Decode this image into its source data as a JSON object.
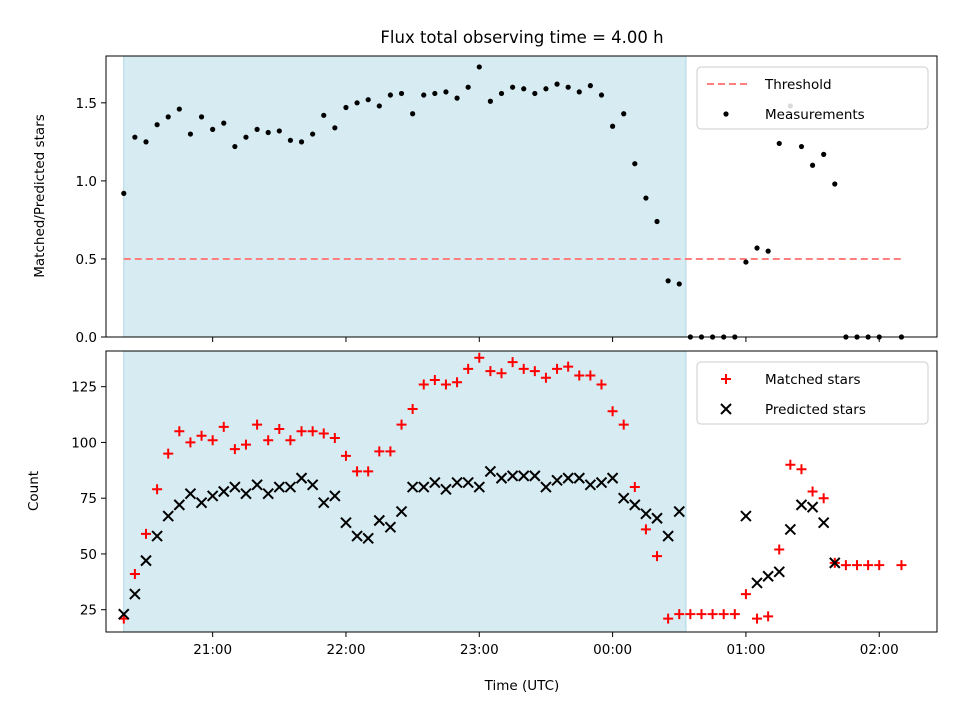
{
  "chart_data": [
    {
      "type": "scatter",
      "title": "Flux total observing time = 4.00 h",
      "xlabel": "",
      "ylabel": "Matched/Predicted stars",
      "ylim": [
        0,
        1.8
      ],
      "yticks": [
        "0.0",
        "0.5",
        "1.0",
        "1.5"
      ],
      "xlim": [
        "20:12",
        "02:26"
      ],
      "x_tick_labels": false,
      "observing_window": [
        "20:20",
        "00:33"
      ],
      "threshold": {
        "name": "Threshold",
        "value": 0.5,
        "x_range": [
          "20:20",
          "02:10"
        ],
        "color": "#ff7f7f"
      },
      "legend": {
        "position": "upper right",
        "entries": [
          "Threshold",
          "Measurements"
        ]
      },
      "series": [
        {
          "name": "Measurements",
          "color": "#000000",
          "points": [
            [
              "20:20",
              0.92
            ],
            [
              "20:25",
              1.28
            ],
            [
              "20:30",
              1.25
            ],
            [
              "20:35",
              1.36
            ],
            [
              "20:40",
              1.41
            ],
            [
              "20:45",
              1.46
            ],
            [
              "20:50",
              1.3
            ],
            [
              "20:55",
              1.41
            ],
            [
              "21:00",
              1.33
            ],
            [
              "21:05",
              1.37
            ],
            [
              "21:10",
              1.22
            ],
            [
              "21:15",
              1.28
            ],
            [
              "21:20",
              1.33
            ],
            [
              "21:25",
              1.31
            ],
            [
              "21:30",
              1.32
            ],
            [
              "21:35",
              1.26
            ],
            [
              "21:40",
              1.25
            ],
            [
              "21:45",
              1.3
            ],
            [
              "21:50",
              1.42
            ],
            [
              "21:55",
              1.34
            ],
            [
              "22:00",
              1.47
            ],
            [
              "22:05",
              1.5
            ],
            [
              "22:10",
              1.52
            ],
            [
              "22:15",
              1.48
            ],
            [
              "22:20",
              1.55
            ],
            [
              "22:25",
              1.56
            ],
            [
              "22:30",
              1.43
            ],
            [
              "22:35",
              1.55
            ],
            [
              "22:40",
              1.56
            ],
            [
              "22:45",
              1.57
            ],
            [
              "22:50",
              1.53
            ],
            [
              "22:55",
              1.6
            ],
            [
              "23:00",
              1.73
            ],
            [
              "23:05",
              1.51
            ],
            [
              "23:10",
              1.56
            ],
            [
              "23:15",
              1.6
            ],
            [
              "23:20",
              1.59
            ],
            [
              "23:25",
              1.56
            ],
            [
              "23:30",
              1.59
            ],
            [
              "23:35",
              1.62
            ],
            [
              "23:40",
              1.6
            ],
            [
              "23:45",
              1.57
            ],
            [
              "23:50",
              1.61
            ],
            [
              "23:55",
              1.55
            ],
            [
              "00:00",
              1.35
            ],
            [
              "00:05",
              1.43
            ],
            [
              "00:10",
              1.11
            ],
            [
              "00:15",
              0.89
            ],
            [
              "00:20",
              0.74
            ],
            [
              "00:25",
              0.36
            ],
            [
              "00:30",
              0.34
            ],
            [
              "00:35",
              0.0
            ],
            [
              "00:40",
              0.0
            ],
            [
              "00:45",
              0.0
            ],
            [
              "00:50",
              0.0
            ],
            [
              "00:55",
              0.0
            ],
            [
              "01:00",
              0.48
            ],
            [
              "01:05",
              0.57
            ],
            [
              "01:10",
              0.55
            ],
            [
              "01:15",
              1.24
            ],
            [
              "01:20",
              1.48
            ],
            [
              "01:25",
              1.22
            ],
            [
              "01:30",
              1.1
            ],
            [
              "01:35",
              1.17
            ],
            [
              "01:40",
              0.98
            ],
            [
              "01:45",
              0.0
            ],
            [
              "01:50",
              0.0
            ],
            [
              "01:55",
              0.0
            ],
            [
              "02:00",
              0.0
            ],
            [
              "02:10",
              0.0
            ]
          ]
        }
      ]
    },
    {
      "type": "scatter",
      "title": "",
      "xlabel": "Time (UTC)",
      "ylabel": "Count",
      "ylim": [
        15,
        141
      ],
      "yticks": [
        "25",
        "50",
        "75",
        "100",
        "125"
      ],
      "xlim": [
        "20:12",
        "02:26"
      ],
      "x_ticks": [
        "21:00",
        "22:00",
        "23:00",
        "00:00",
        "01:00",
        "02:00"
      ],
      "observing_window": [
        "20:20",
        "00:33"
      ],
      "legend": {
        "position": "upper right",
        "entries": [
          "Matched stars",
          "Predicted stars"
        ]
      },
      "series": [
        {
          "name": "Matched stars",
          "marker": "+",
          "color": "#ff0000",
          "points": [
            [
              "20:20",
              21
            ],
            [
              "20:25",
              41
            ],
            [
              "20:30",
              59
            ],
            [
              "20:35",
              79
            ],
            [
              "20:40",
              95
            ],
            [
              "20:45",
              105
            ],
            [
              "20:50",
              100
            ],
            [
              "20:55",
              103
            ],
            [
              "21:00",
              101
            ],
            [
              "21:05",
              107
            ],
            [
              "21:10",
              97
            ],
            [
              "21:15",
              99
            ],
            [
              "21:20",
              108
            ],
            [
              "21:25",
              101
            ],
            [
              "21:30",
              106
            ],
            [
              "21:35",
              101
            ],
            [
              "21:40",
              105
            ],
            [
              "21:45",
              105
            ],
            [
              "21:50",
              104
            ],
            [
              "21:55",
              102
            ],
            [
              "22:00",
              94
            ],
            [
              "22:05",
              87
            ],
            [
              "22:10",
              87
            ],
            [
              "22:15",
              96
            ],
            [
              "22:20",
              96
            ],
            [
              "22:25",
              108
            ],
            [
              "22:30",
              115
            ],
            [
              "22:35",
              126
            ],
            [
              "22:40",
              128
            ],
            [
              "22:45",
              126
            ],
            [
              "22:50",
              127
            ],
            [
              "22:55",
              133
            ],
            [
              "23:00",
              138
            ],
            [
              "23:05",
              132
            ],
            [
              "23:10",
              131
            ],
            [
              "23:15",
              136
            ],
            [
              "23:20",
              133
            ],
            [
              "23:25",
              132
            ],
            [
              "23:30",
              129
            ],
            [
              "23:35",
              133
            ],
            [
              "23:40",
              134
            ],
            [
              "23:45",
              130
            ],
            [
              "23:50",
              130
            ],
            [
              "23:55",
              126
            ],
            [
              "00:00",
              114
            ],
            [
              "00:05",
              108
            ],
            [
              "00:10",
              80
            ],
            [
              "00:15",
              61
            ],
            [
              "00:20",
              49
            ],
            [
              "00:25",
              21
            ],
            [
              "00:30",
              23
            ],
            [
              "00:35",
              23
            ],
            [
              "00:40",
              23
            ],
            [
              "00:45",
              23
            ],
            [
              "00:50",
              23
            ],
            [
              "00:55",
              23
            ],
            [
              "01:00",
              32
            ],
            [
              "01:05",
              21
            ],
            [
              "01:10",
              22
            ],
            [
              "01:15",
              52
            ],
            [
              "01:20",
              90
            ],
            [
              "01:25",
              88
            ],
            [
              "01:30",
              78
            ],
            [
              "01:35",
              75
            ],
            [
              "01:40",
              46
            ],
            [
              "01:45",
              45
            ],
            [
              "01:50",
              45
            ],
            [
              "01:55",
              45
            ],
            [
              "02:00",
              45
            ],
            [
              "02:10",
              45
            ]
          ]
        },
        {
          "name": "Predicted stars",
          "marker": "x",
          "color": "#000000",
          "points": [
            [
              "20:20",
              23
            ],
            [
              "20:25",
              32
            ],
            [
              "20:30",
              47
            ],
            [
              "20:35",
              58
            ],
            [
              "20:40",
              67
            ],
            [
              "20:45",
              72
            ],
            [
              "20:50",
              77
            ],
            [
              "20:55",
              73
            ],
            [
              "21:00",
              76
            ],
            [
              "21:05",
              78
            ],
            [
              "21:10",
              80
            ],
            [
              "21:15",
              77
            ],
            [
              "21:20",
              81
            ],
            [
              "21:25",
              77
            ],
            [
              "21:30",
              80
            ],
            [
              "21:35",
              80
            ],
            [
              "21:40",
              84
            ],
            [
              "21:45",
              81
            ],
            [
              "21:50",
              73
            ],
            [
              "21:55",
              76
            ],
            [
              "22:00",
              64
            ],
            [
              "22:05",
              58
            ],
            [
              "22:10",
              57
            ],
            [
              "22:15",
              65
            ],
            [
              "22:20",
              62
            ],
            [
              "22:25",
              69
            ],
            [
              "22:30",
              80
            ],
            [
              "22:35",
              80
            ],
            [
              "22:40",
              82
            ],
            [
              "22:45",
              79
            ],
            [
              "22:50",
              82
            ],
            [
              "22:55",
              82
            ],
            [
              "23:00",
              80
            ],
            [
              "23:05",
              87
            ],
            [
              "23:10",
              84
            ],
            [
              "23:15",
              85
            ],
            [
              "23:20",
              85
            ],
            [
              "23:25",
              85
            ],
            [
              "23:30",
              80
            ],
            [
              "23:35",
              83
            ],
            [
              "23:40",
              84
            ],
            [
              "23:45",
              84
            ],
            [
              "23:50",
              81
            ],
            [
              "23:55",
              82
            ],
            [
              "00:00",
              84
            ],
            [
              "00:05",
              75
            ],
            [
              "00:10",
              72
            ],
            [
              "00:15",
              68
            ],
            [
              "00:20",
              66
            ],
            [
              "00:25",
              58
            ],
            [
              "00:30",
              69
            ],
            [
              "01:00",
              67
            ],
            [
              "01:05",
              37
            ],
            [
              "01:10",
              40
            ],
            [
              "01:15",
              42
            ],
            [
              "01:20",
              61
            ],
            [
              "01:25",
              72
            ],
            [
              "01:30",
              71
            ],
            [
              "01:35",
              64
            ],
            [
              "01:40",
              46
            ]
          ]
        }
      ]
    }
  ]
}
